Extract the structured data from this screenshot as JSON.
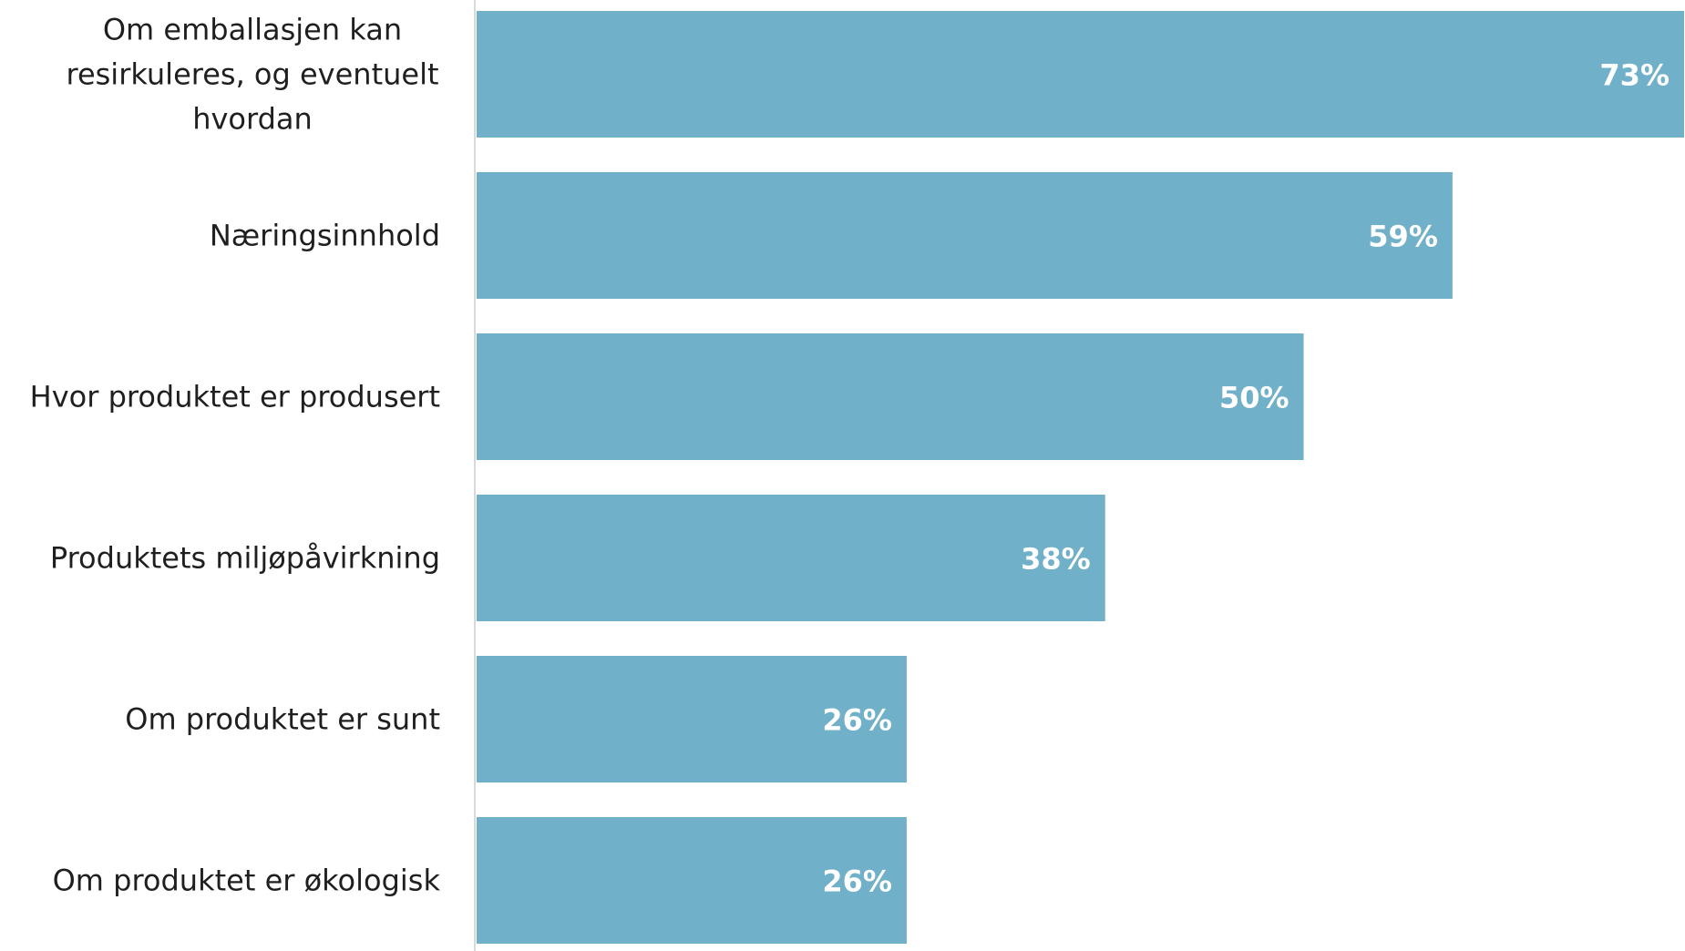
{
  "chart_data": {
    "type": "bar",
    "orientation": "horizontal",
    "categories": [
      "Om emballasjen kan resirkuleres, og eventuelt hvordan",
      "Næringsinnhold",
      "Hvor produktet er produsert",
      "Produktets miljøpåvirkning",
      "Om produktet er sunt",
      "Om produktet er økologisk"
    ],
    "category_lines": [
      [
        "Om emballasjen kan",
        "resirkuleres, og eventuelt",
        "hvordan"
      ],
      [
        "Næringsinnhold"
      ],
      [
        "Hvor produktet er produsert"
      ],
      [
        "Produktets miljøpåvirkning"
      ],
      [
        "Om produktet er sunt"
      ],
      [
        "Om produktet er økologisk"
      ]
    ],
    "values": [
      73,
      59,
      50,
      38,
      26,
      26
    ],
    "value_labels": [
      "73%",
      "59%",
      "50%",
      "38%",
      "26%",
      "26%"
    ],
    "unit": "%",
    "bar_color": "#71b0c9",
    "label_color": "#ffffff",
    "text_color": "#1f1f1f",
    "axis_color": "#d9d9d9",
    "grid": false,
    "legend": "none"
  }
}
